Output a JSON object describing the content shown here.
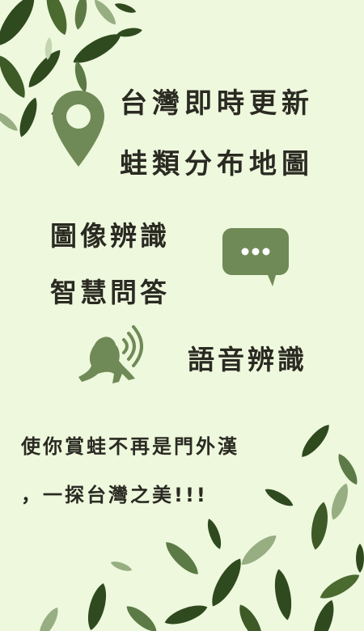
{
  "headline": {
    "line1": "台灣即時更新",
    "line2": "蛙類分布地圖"
  },
  "features": {
    "image_recognition": "圖像辨識",
    "smart_qa": "智慧問答",
    "voice_recognition": "語音辨識"
  },
  "tagline": {
    "line1": "使你賞蛙不再是門外漢",
    "line2": "，一探台灣之美!!!"
  },
  "icons": {
    "map_pin": "location-pin-icon",
    "chat": "chat-bubble-icon",
    "frog_sound": "frog-sound-icon"
  },
  "colors": {
    "background": "#eef8dd",
    "icon_green": "#6f8a56",
    "leaf_dark": "#2f4a1e",
    "leaf_mid": "#5c7a45",
    "leaf_light": "#97ad82",
    "text": "#2a2a22"
  }
}
